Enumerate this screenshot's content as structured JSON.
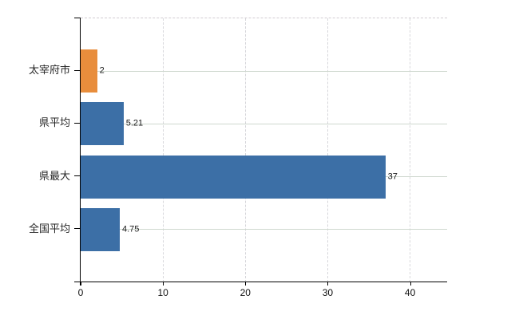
{
  "chart_data": {
    "type": "bar",
    "orientation": "horizontal",
    "title": "",
    "xlabel": "",
    "ylabel": "",
    "categories": [
      "太宰府市",
      "県平均",
      "県最大",
      "全国平均"
    ],
    "values": [
      2,
      5.21,
      37,
      4.75
    ],
    "value_labels": [
      "2",
      "5.21",
      "37",
      "4.75"
    ],
    "bar_colors": [
      "#e88d3c",
      "#3c6fa6",
      "#3c6fa6",
      "#3c6fa6"
    ],
    "x_ticks": [
      0,
      10,
      20,
      30,
      40
    ],
    "x_tick_labels": [
      "0",
      "10",
      "20",
      "30",
      "40"
    ],
    "xlim": [
      0,
      44.5
    ],
    "grid": true,
    "legend_position": "none"
  },
  "colors": {
    "accent_orange": "#e88d3c",
    "accent_blue": "#3c6fa6",
    "horizontal_grid": "#cfd8cf",
    "vertical_grid": "#d7d7db",
    "axis": "#000000",
    "text": "#262626",
    "background": "#ffffff"
  }
}
